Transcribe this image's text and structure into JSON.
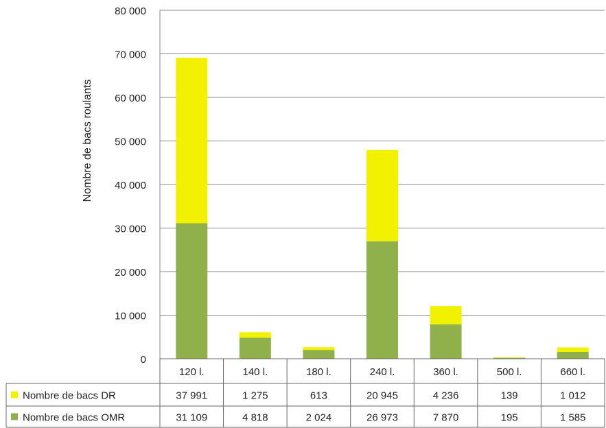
{
  "chart_data": {
    "type": "bar",
    "stacked": true,
    "categories": [
      "120 l.",
      "140 l.",
      "180 l.",
      "240 l.",
      "360 l.",
      "500 l.",
      "660 l."
    ],
    "series": [
      {
        "name": "Nombre de bacs OMR",
        "color": "#8fb04a",
        "values": [
          31109,
          4818,
          2024,
          26973,
          7870,
          195,
          1585
        ]
      },
      {
        "name": "Nombre de bacs DR",
        "color": "#f2f200",
        "values": [
          37991,
          1275,
          613,
          20945,
          4236,
          139,
          1012
        ]
      }
    ],
    "value_labels": {
      "Nombre de bacs DR": [
        "37 991",
        "1 275",
        "613",
        "20 945",
        "4 236",
        "139",
        "1 012"
      ],
      "Nombre de bacs OMR": [
        "31 109",
        "4 818",
        "2 024",
        "26 973",
        "7 870",
        "195",
        "1 585"
      ]
    },
    "table_row_order": [
      "Nombre de bacs DR",
      "Nombre de bacs OMR"
    ],
    "ylabel": "Nombre de bacs roulants",
    "ylim": [
      0,
      80000
    ],
    "yticks": [
      0,
      10000,
      20000,
      30000,
      40000,
      50000,
      60000,
      70000,
      80000
    ],
    "ytick_labels": [
      "0",
      "10 000",
      "20 000",
      "30 000",
      "40 000",
      "50 000",
      "60 000",
      "70 000",
      "80 000"
    ],
    "grid": true,
    "legend": "data-table"
  }
}
